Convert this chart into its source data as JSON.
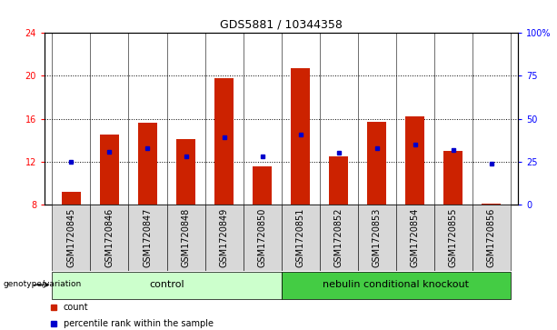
{
  "title": "GDS5881 / 10344358",
  "samples": [
    "GSM1720845",
    "GSM1720846",
    "GSM1720847",
    "GSM1720848",
    "GSM1720849",
    "GSM1720850",
    "GSM1720851",
    "GSM1720852",
    "GSM1720853",
    "GSM1720854",
    "GSM1720855",
    "GSM1720856"
  ],
  "count_values": [
    9.2,
    14.5,
    15.6,
    14.1,
    19.8,
    11.6,
    20.7,
    12.5,
    15.7,
    16.2,
    13.0,
    8.1
  ],
  "percentile_values": [
    25.0,
    31.0,
    33.0,
    28.0,
    39.0,
    28.0,
    41.0,
    30.0,
    33.0,
    35.0,
    32.0,
    24.0
  ],
  "ylim_left": [
    8,
    24
  ],
  "yticks_left": [
    8,
    12,
    16,
    20,
    24
  ],
  "ylim_right": [
    0,
    100
  ],
  "yticks_right": [
    0,
    25,
    50,
    75,
    100
  ],
  "yticklabels_right": [
    "0",
    "25",
    "50",
    "75",
    "100%"
  ],
  "bar_color": "#cc2200",
  "dot_color": "#0000cc",
  "bar_width": 0.5,
  "grid_color": "black",
  "bg_color": "#d8d8d8",
  "groups": [
    {
      "label": "control",
      "span": [
        0,
        5
      ],
      "color": "#ccffcc"
    },
    {
      "label": "nebulin conditional knockout",
      "span": [
        6,
        11
      ],
      "color": "#44cc44"
    }
  ],
  "group_row_label": "genotype/variation",
  "legend_items": [
    {
      "label": "count",
      "color": "#cc2200"
    },
    {
      "label": "percentile rank within the sample",
      "color": "#0000cc"
    }
  ],
  "tick_fontsize": 7,
  "title_fontsize": 9,
  "group_fontsize": 8
}
